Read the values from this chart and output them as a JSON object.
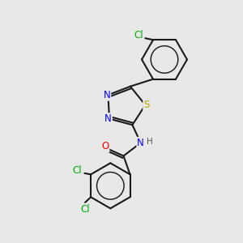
{
  "background_color": "#e8e8e8",
  "bond_color": "#1a1a1a",
  "bond_width": 1.5,
  "atom_colors": {
    "N": "#0000ff",
    "S": "#bbaa00",
    "O": "#ff0000",
    "Cl": "#00aa00",
    "C": "#1a1a1a",
    "H": "#555555"
  },
  "font_size": 8.5
}
